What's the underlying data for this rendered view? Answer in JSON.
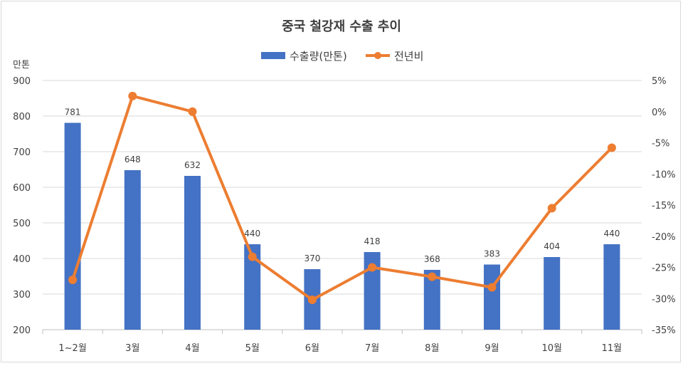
{
  "chart_data": {
    "type": "bar+line",
    "title": "중국 철강재 수출 추이",
    "categories": [
      "1~2월",
      "3월",
      "4월",
      "5월",
      "6월",
      "7월",
      "8월",
      "9월",
      "10월",
      "11월"
    ],
    "y_left": {
      "label": "만톤",
      "range": [
        200,
        900
      ],
      "ticks": [
        "200",
        "300",
        "400",
        "500",
        "600",
        "700",
        "800",
        "900"
      ]
    },
    "y_right": {
      "range": [
        -35,
        5
      ],
      "ticks": [
        "-35%",
        "-30%",
        "-25%",
        "-20%",
        "-15%",
        "-10%",
        "-5%",
        "0%",
        "5%"
      ]
    },
    "series": [
      {
        "name": "수출량(만톤)",
        "type": "bar",
        "axis": "left",
        "color": "#4472c4",
        "values": [
          781,
          648,
          632,
          440,
          370,
          418,
          368,
          383,
          404,
          440
        ],
        "labels": [
          "781",
          "648",
          "632",
          "440",
          "370",
          "418",
          "368",
          "383",
          "404",
          "440"
        ]
      },
      {
        "name": "전년비",
        "type": "line",
        "axis": "right",
        "color": "#ed7d31",
        "values": [
          -27.0,
          2.5,
          0.0,
          -23.3,
          -30.2,
          -25.0,
          -26.5,
          -28.2,
          -15.5,
          -5.8
        ]
      }
    ],
    "legend": "top",
    "grid": true
  }
}
